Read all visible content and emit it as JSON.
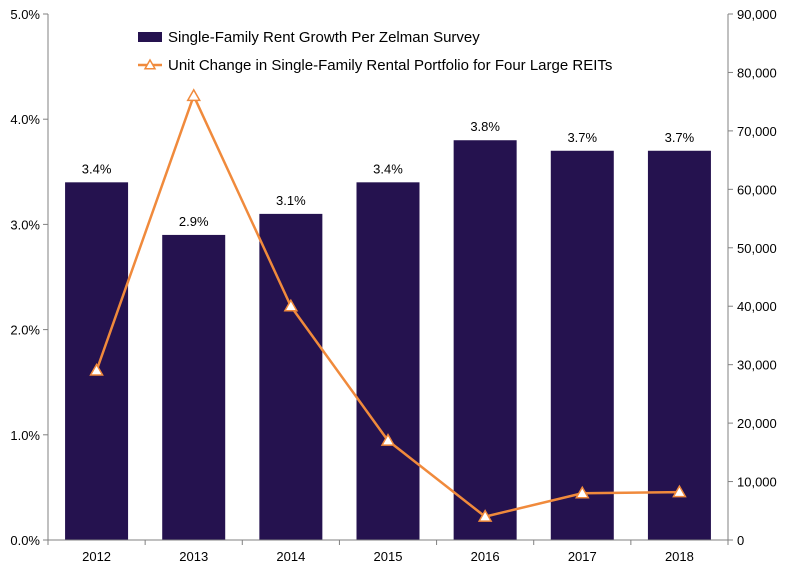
{
  "chart_data": {
    "type": "bar+line",
    "categories": [
      "2012",
      "2013",
      "2014",
      "2015",
      "2016",
      "2017",
      "2018"
    ],
    "series": [
      {
        "name": "Single-Family Rent Growth Per Zelman Survey",
        "type": "bar",
        "axis": "left",
        "values": [
          3.4,
          2.9,
          3.1,
          3.4,
          3.8,
          3.7,
          3.7
        ],
        "labels": [
          "3.4%",
          "2.9%",
          "3.1%",
          "3.4%",
          "3.8%",
          "3.7%",
          "3.7%"
        ],
        "color": "#25124f"
      },
      {
        "name": "Unit Change in Single-Family Rental Portfolio for Four Large REITs",
        "type": "line",
        "axis": "right",
        "marker": "triangle",
        "values": [
          29000,
          76000,
          40000,
          17000,
          4000,
          8000,
          8200
        ],
        "color": "#f08a3c"
      }
    ],
    "y_left": {
      "lim": [
        0,
        5.0
      ],
      "ticks": [
        0,
        1,
        2,
        3,
        4,
        5
      ],
      "tick_labels": [
        "0.0%",
        "1.0%",
        "2.0%",
        "3.0%",
        "4.0%",
        "5.0%"
      ]
    },
    "y_right": {
      "lim": [
        0,
        90000
      ],
      "ticks": [
        0,
        10000,
        20000,
        30000,
        40000,
        50000,
        60000,
        70000,
        80000,
        90000
      ],
      "tick_labels": [
        "0",
        "10,000",
        "20,000",
        "30,000",
        "40,000",
        "50,000",
        "60,000",
        "70,000",
        "80,000",
        "90,000"
      ]
    },
    "legend_position": "top-center",
    "grid": false,
    "title": "",
    "xlabel": ""
  }
}
